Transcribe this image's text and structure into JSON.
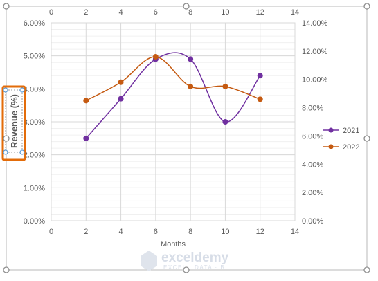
{
  "chart_data": {
    "type": "scatter",
    "smooth": true,
    "xlabel": "Months",
    "ylabel": "Revenue (%)",
    "x_ticks": [
      0,
      2,
      4,
      6,
      8,
      10,
      12,
      14
    ],
    "xlim": [
      0,
      14
    ],
    "ylim_primary": [
      0,
      0.06
    ],
    "primary_ticks": [
      "0.00%",
      "1.00%",
      "2.00%",
      "3.00%",
      "4.00%",
      "5.00%",
      "6.00%"
    ],
    "ylim_secondary": [
      0,
      0.14
    ],
    "secondary_ticks": [
      "0.00%",
      "2.00%",
      "4.00%",
      "6.00%",
      "8.00%",
      "10.00%",
      "12.00%",
      "14.00%"
    ],
    "grid": true,
    "legend_position": "right",
    "series": [
      {
        "name": "2021",
        "axis": "primary",
        "color": "#7030a0",
        "x": [
          2,
          4,
          6,
          8,
          10,
          12
        ],
        "y": [
          0.025,
          0.037,
          0.049,
          0.049,
          0.03,
          0.044
        ]
      },
      {
        "name": "2022",
        "axis": "secondary",
        "color": "#c55a11",
        "x": [
          2,
          4,
          6,
          8,
          10,
          12
        ],
        "y": [
          0.085,
          0.098,
          0.116,
          0.095,
          0.095,
          0.086
        ]
      }
    ]
  },
  "selection_color": "#e36c0a",
  "handle_color": "#5b9bd5",
  "watermark": {
    "name": "exceldemy",
    "tagline": "EXCEL · DATA · BI"
  }
}
